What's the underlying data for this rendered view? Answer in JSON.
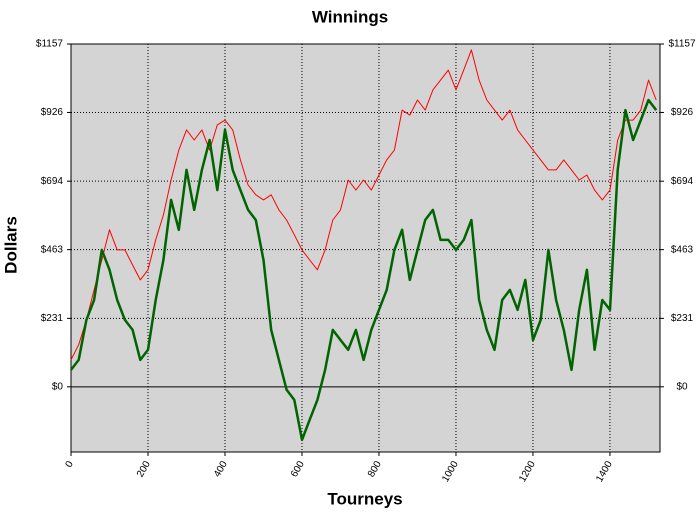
{
  "chart_data": {
    "type": "line",
    "title": "Winnings",
    "x_label": "Tourneys",
    "y_label": "Dollars",
    "x": [
      0,
      20,
      40,
      60,
      80,
      100,
      120,
      140,
      160,
      180,
      200,
      220,
      240,
      260,
      280,
      300,
      320,
      340,
      360,
      380,
      400,
      420,
      440,
      460,
      480,
      500,
      520,
      540,
      560,
      580,
      600,
      620,
      640,
      660,
      680,
      700,
      720,
      740,
      760,
      780,
      800,
      820,
      840,
      860,
      880,
      900,
      920,
      940,
      960,
      980,
      1000,
      1020,
      1040,
      1060,
      1080,
      1100,
      1120,
      1140,
      1160,
      1180,
      1200,
      1220,
      1240,
      1260,
      1280,
      1300,
      1320,
      1340,
      1360,
      1380,
      1400,
      1420,
      1440,
      1460,
      1480,
      1500,
      1520
    ],
    "series": [
      {
        "color": "#ff0000",
        "values": [
          91,
          142,
          226,
          327,
          428,
          530,
          462,
          462,
          411,
          361,
          395,
          496,
          580,
          698,
          799,
          867,
          833,
          867,
          799,
          884,
          900,
          867,
          766,
          681,
          648,
          631,
          648,
          597,
          563,
          513,
          462,
          428,
          395,
          462,
          563,
          597,
          698,
          664,
          698,
          664,
          715,
          766,
          799,
          934,
          917,
          968,
          934,
          1002,
          1035,
          1069,
          1002,
          1069,
          1137,
          1035,
          968,
          934,
          900,
          934,
          867,
          833,
          799,
          766,
          732,
          732,
          766,
          732,
          698,
          715,
          664,
          631,
          664,
          833,
          900,
          900,
          934,
          1035,
          968
        ]
      },
      {
        "color": "#006400",
        "values": [
          57,
          91,
          226,
          293,
          462,
          395,
          293,
          226,
          192,
          91,
          125,
          293,
          428,
          631,
          530,
          732,
          597,
          732,
          833,
          664,
          867,
          732,
          664,
          597,
          563,
          428,
          192,
          91,
          -10,
          -44,
          -179,
          -111,
          -44,
          57,
          192,
          158,
          125,
          192,
          91,
          192,
          260,
          327,
          462,
          530,
          361,
          462,
          563,
          597,
          496,
          496,
          462,
          496,
          563,
          293,
          192,
          125,
          293,
          327,
          260,
          361,
          158,
          226,
          462,
          293,
          192,
          57,
          260,
          395,
          125,
          293,
          260,
          732,
          934,
          833,
          900,
          968,
          934
        ]
      }
    ],
    "xlim": [
      0,
      1530
    ],
    "ylim": [
      -220,
      1157
    ],
    "xticks": [
      0,
      200,
      400,
      600,
      800,
      1000,
      1200,
      1400
    ],
    "yticks": [
      {
        "value": 0,
        "label": "$0"
      },
      {
        "value": 231,
        "label": "$231"
      },
      {
        "value": 463,
        "label": "$463"
      },
      {
        "value": 694,
        "label": "$694"
      },
      {
        "value": 926,
        "label": "$926"
      },
      {
        "value": 1157,
        "label": "$1157"
      }
    ],
    "grid": true,
    "zero_line": true,
    "plot_background": "#d4d4d4"
  }
}
